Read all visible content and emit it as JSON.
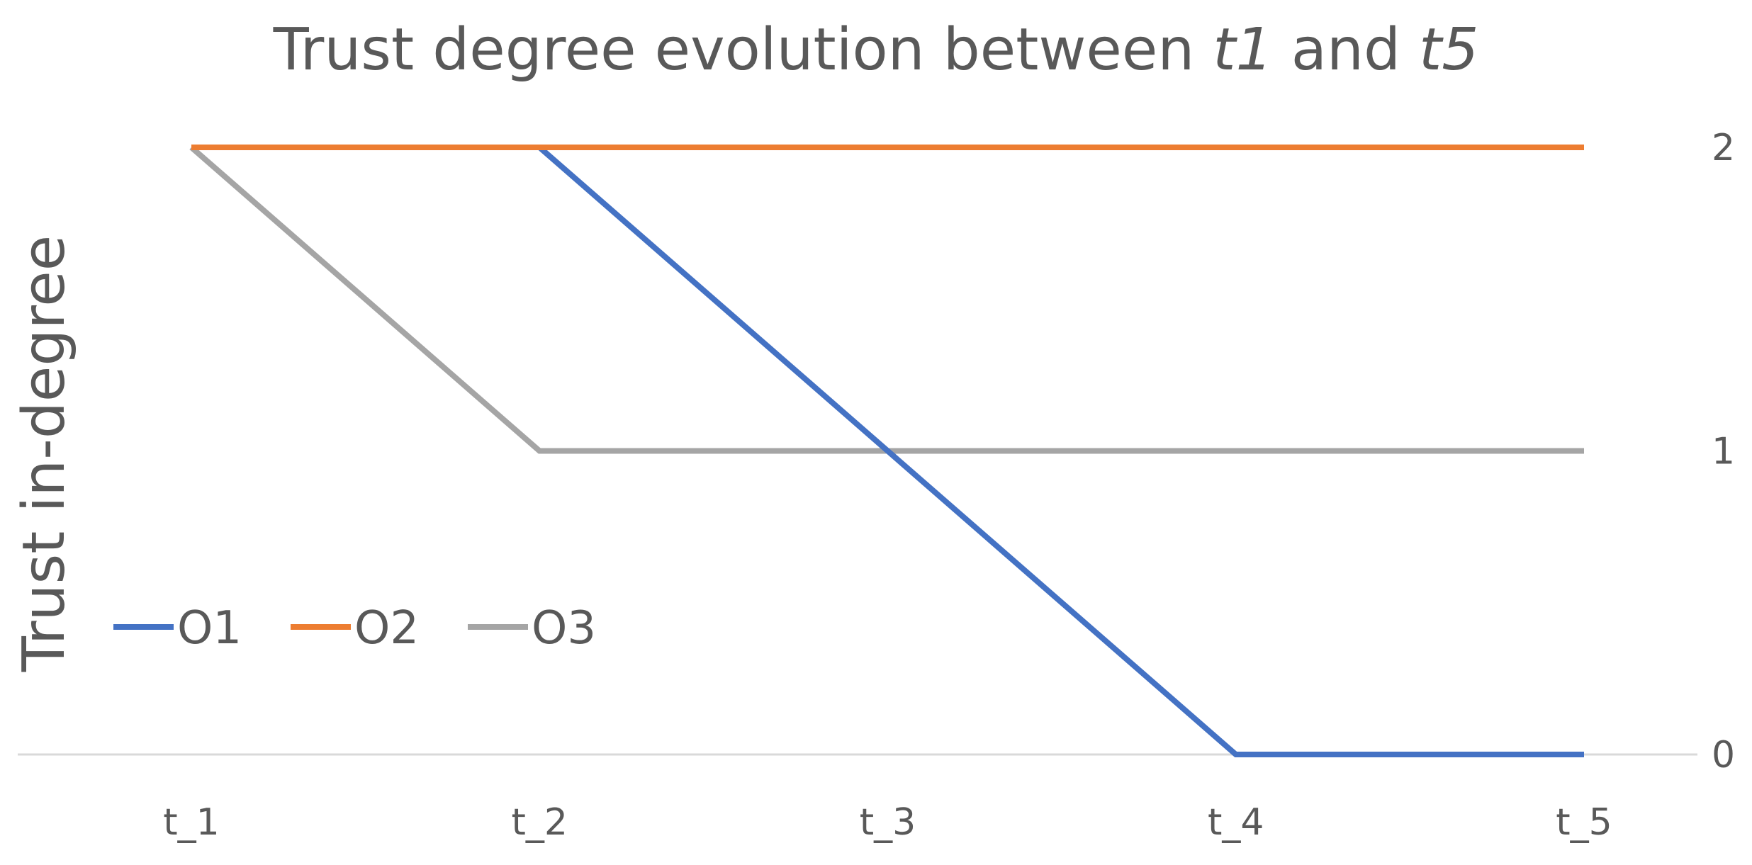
{
  "chart_data": {
    "type": "line",
    "title_parts": [
      {
        "text": "Trust degree evolution between ",
        "italic": false
      },
      {
        "text": "t1",
        "italic": true
      },
      {
        "text": " and ",
        "italic": false
      },
      {
        "text": "t5",
        "italic": true
      }
    ],
    "xlabel": "",
    "ylabel": "Trust in-degree",
    "categories": [
      "t_1",
      "t_2",
      "t_3",
      "t_4",
      "t_5"
    ],
    "y_ticks": [
      0,
      1,
      2
    ],
    "ylim": [
      0,
      2
    ],
    "y_axis_side": "right",
    "grid": false,
    "legend_position": "center-left",
    "series": [
      {
        "name": "O1",
        "color": "#4472C4",
        "values": [
          2,
          2,
          1,
          0,
          0
        ]
      },
      {
        "name": "O2",
        "color": "#ED7D31",
        "values": [
          2,
          2,
          2,
          2,
          2
        ]
      },
      {
        "name": "O3",
        "color": "#A5A5A5",
        "values": [
          2,
          1,
          1,
          1,
          1
        ]
      }
    ]
  }
}
